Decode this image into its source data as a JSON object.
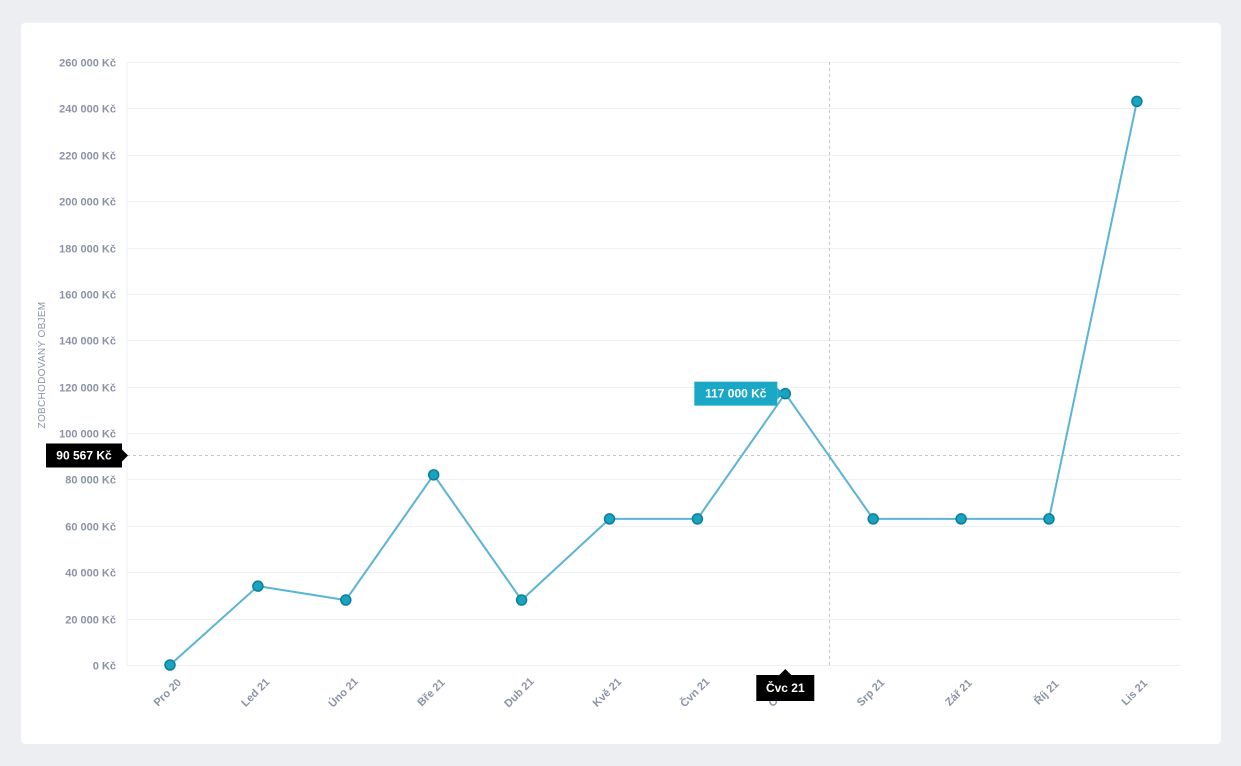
{
  "chart_data": {
    "type": "line",
    "ylabel": "ZOBCHODOVANÝ OBJEM",
    "categories": [
      "Pro 20",
      "Led 21",
      "Úno 21",
      "Bře 21",
      "Dub 21",
      "Kvě 21",
      "Čvn 21",
      "Čvc 21",
      "Srp 21",
      "Zář 21",
      "Říj 21",
      "Lis 21"
    ],
    "values": [
      0,
      34000,
      28000,
      82000,
      28000,
      63000,
      63000,
      117000,
      63000,
      63000,
      63000,
      243000
    ],
    "ylim": [
      0,
      260000
    ],
    "yticks": [
      0,
      20000,
      40000,
      60000,
      80000,
      100000,
      120000,
      140000,
      160000,
      180000,
      200000,
      220000,
      240000,
      260000
    ],
    "ytick_labels": [
      "0 Kč",
      "20 000 Kč",
      "40 000 Kč",
      "60 000 Kč",
      "80 000 Kč",
      "100 000 Kč",
      "120 000 Kč",
      "140 000 Kč",
      "160 000 Kč",
      "180 000 Kč",
      "200 000 Kč",
      "220 000 Kč",
      "240 000 Kč",
      "260 000 Kč"
    ],
    "grid": true,
    "reference_line": {
      "value": 90567,
      "label": "90 567 Kč"
    },
    "hover": {
      "index": 7,
      "value_label": "117 000 Kč",
      "category_label": "Čvc 21"
    },
    "colors": {
      "line": "#5ab4d6",
      "marker_fill": "#1aa3bf",
      "marker_stroke": "#0b7f99",
      "tooltip_bg": "#1ba8c6",
      "tag_bg": "#000000",
      "grid": "#eef0f3",
      "guide": "#c4c6ca"
    }
  }
}
